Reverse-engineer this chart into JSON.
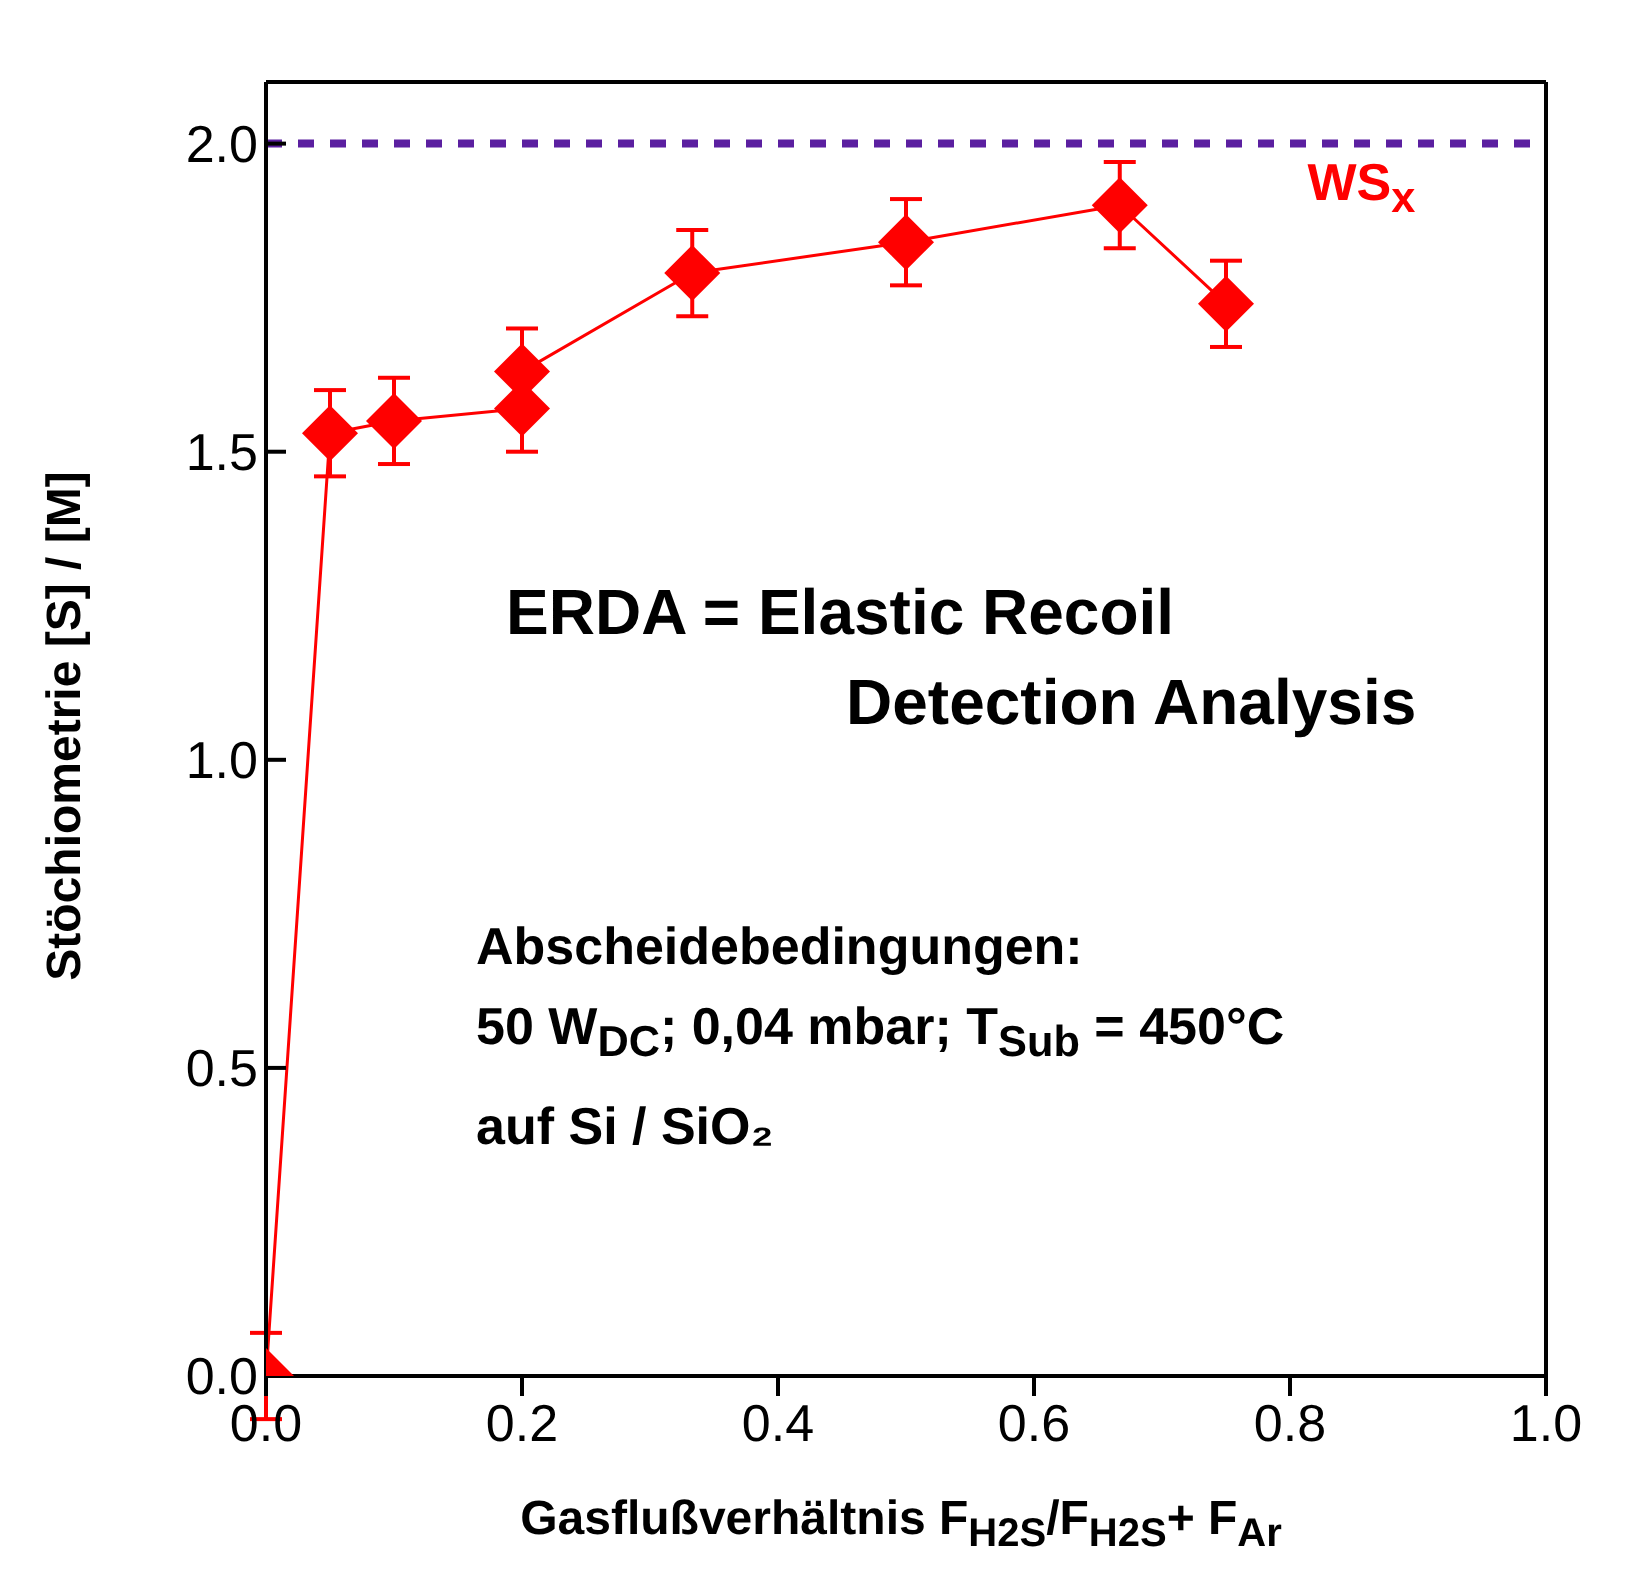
{
  "chart_data": {
    "type": "line",
    "xlabel": "Gasflußverhältnis F$_{H2S}$/F$_{H2S}$+ F$_{Ar}$",
    "ylabel": "Stöchiometrie [S] / [M]",
    "x": [
      0,
      0.05,
      0.1,
      0.2,
      0.2,
      0.333,
      0.5,
      0.667,
      0.75
    ],
    "series": [
      {
        "name": "WS$_{x}$",
        "color": "#ff0000",
        "values": [
          0.0,
          1.53,
          1.55,
          1.57,
          1.63,
          1.79,
          1.84,
          1.9,
          1.74
        ],
        "errors": [
          0.07,
          0.07,
          0.07,
          0.07,
          0.07,
          0.07,
          0.07,
          0.07,
          0.07
        ]
      }
    ],
    "xlim": [
      0,
      1
    ],
    "ylim": [
      0,
      2.1
    ],
    "xticks": [
      {
        "value": 0,
        "label": "0.0"
      },
      {
        "value": 0.2,
        "label": "0.2"
      },
      {
        "value": 0.4,
        "label": "0.4"
      },
      {
        "value": 0.6,
        "label": "0.6"
      },
      {
        "value": 0.8,
        "label": "0.8"
      },
      {
        "value": 1,
        "label": "1.0"
      }
    ],
    "yticks": [
      {
        "value": 0,
        "label": "0.0"
      },
      {
        "value": 0.5,
        "label": "0.5"
      },
      {
        "value": 1,
        "label": "1.0"
      },
      {
        "value": 1.5,
        "label": "1.5"
      },
      {
        "value": 2,
        "label": "2.0"
      }
    ],
    "ref_lines": [
      {
        "axis": "y",
        "value": 2,
        "color": "#5b1fa0",
        "line_style": "dashed"
      }
    ],
    "annotations": [
      "ERDA = Elastic Recoil",
      "Detection Analysis",
      "Abscheidebedingungen:",
      "50 W$_{DC}$; 0,04 mbar; T$_{Sub}$ = 450°C",
      "auf Si / SiO₂"
    ],
    "marker": "diamond",
    "line_style": "solid"
  }
}
